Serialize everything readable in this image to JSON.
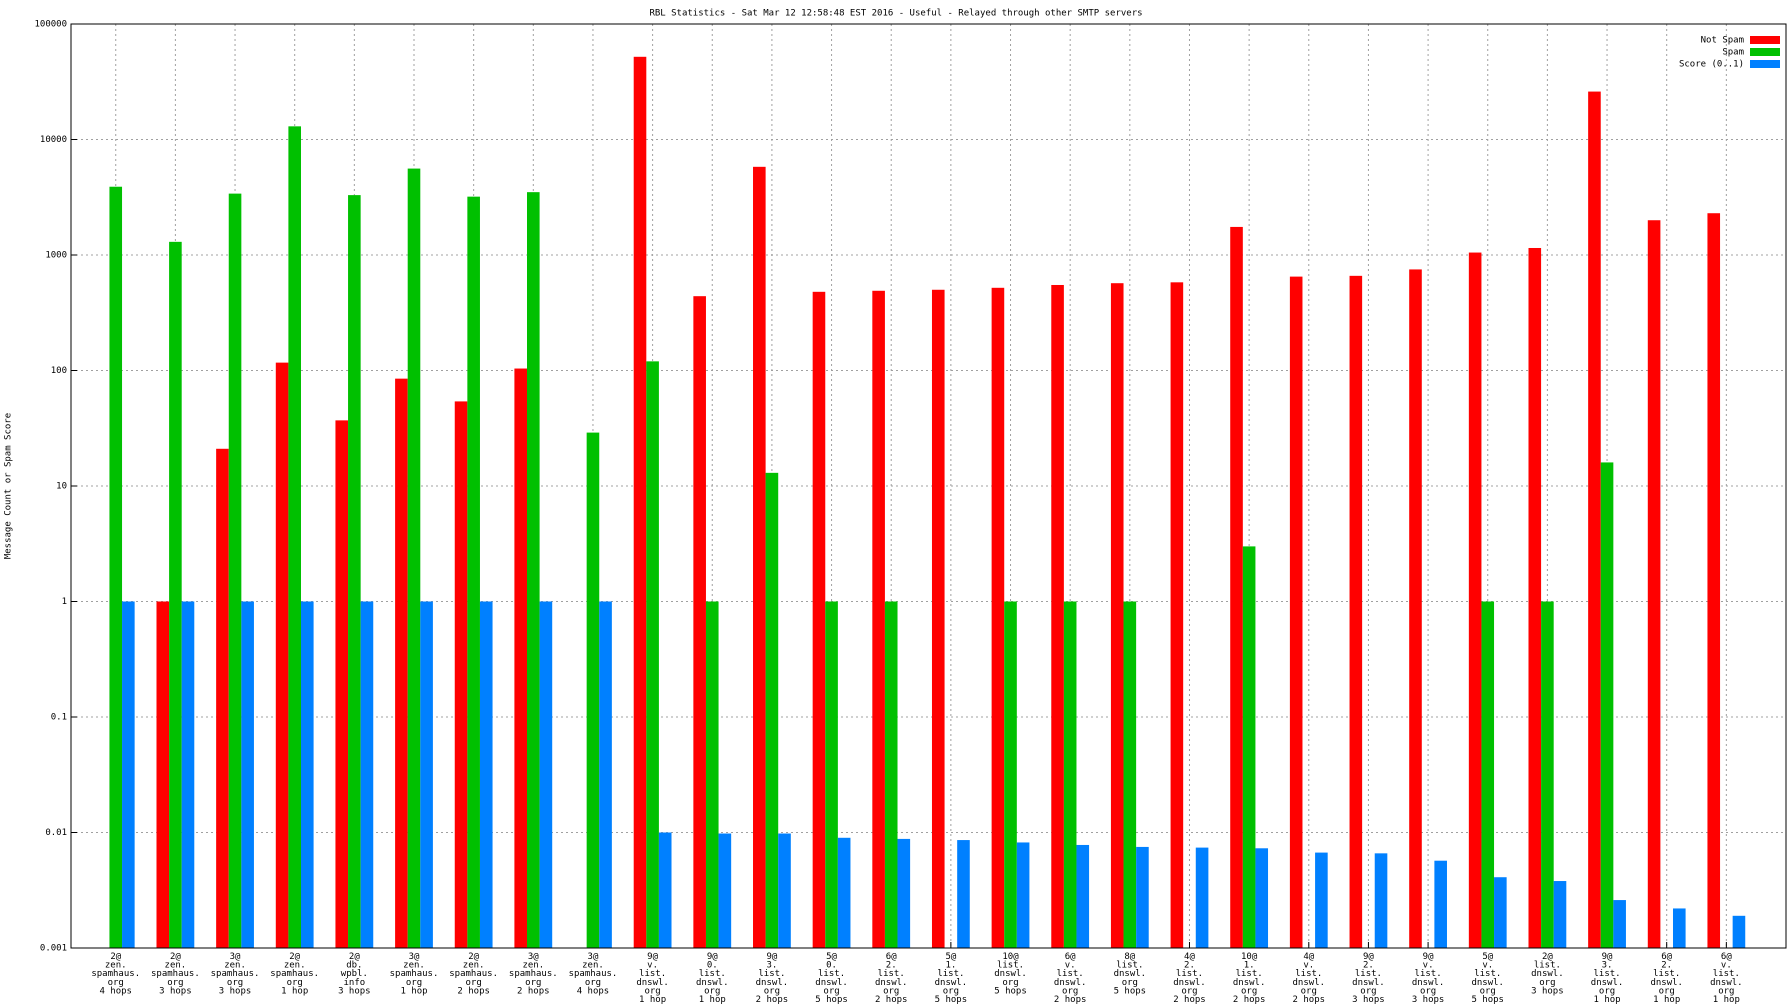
{
  "chart_data": {
    "type": "bar",
    "title": "RBL Statistics - Sat Mar 12 12:58:48 EST 2016 - Useful - Relayed through other SMTP servers",
    "y_label": "Message Count or Spam Score",
    "log_scale": true,
    "grid": true,
    "legend_position": "top-right",
    "categories": [
      [
        "2@",
        "zen.",
        "spamhaus.",
        "org",
        "4 hops"
      ],
      [
        "2@",
        "zen.",
        "spamhaus.",
        "org",
        "3 hops"
      ],
      [
        "3@",
        "zen.",
        "spamhaus.",
        "org",
        "3 hops"
      ],
      [
        "2@",
        "zen.",
        "spamhaus.",
        "org",
        "1 hop"
      ],
      [
        "2@",
        "db.",
        "wpbl.",
        "info",
        "3 hops"
      ],
      [
        "3@",
        "zen.",
        "spamhaus.",
        "org",
        "1 hop"
      ],
      [
        "2@",
        "zen.",
        "spamhaus.",
        "org",
        "2 hops"
      ],
      [
        "3@",
        "zen.",
        "spamhaus.",
        "org",
        "2 hops"
      ],
      [
        "3@",
        "zen.",
        "spamhaus.",
        "org",
        "4 hops"
      ],
      [
        "9@",
        "v.",
        "list.",
        "dnswl.",
        "org",
        "1 hop"
      ],
      [
        "9@",
        "0.",
        "list.",
        "dnswl.",
        "org",
        "1 hop"
      ],
      [
        "9@",
        "3.",
        "list.",
        "dnswl.",
        "org",
        "2 hops"
      ],
      [
        "5@",
        "0.",
        "list.",
        "dnswl.",
        "org",
        "5 hops"
      ],
      [
        "6@",
        "2.",
        "list.",
        "dnswl.",
        "org",
        "2 hops"
      ],
      [
        "5@",
        "1.",
        "list.",
        "dnswl.",
        "org",
        "5 hops"
      ],
      [
        "10@",
        "list.",
        "dnswl.",
        "org",
        "5 hops"
      ],
      [
        "6@",
        "v.",
        "list.",
        "dnswl.",
        "org",
        "2 hops"
      ],
      [
        "8@",
        "list.",
        "dnswl.",
        "org",
        "5 hops"
      ],
      [
        "4@",
        "2.",
        "list.",
        "dnswl.",
        "org",
        "2 hops"
      ],
      [
        "10@",
        "1.",
        "list.",
        "dnswl.",
        "org",
        "2 hops"
      ],
      [
        "4@",
        "v.",
        "list.",
        "dnswl.",
        "org",
        "2 hops"
      ],
      [
        "9@",
        "2.",
        "list.",
        "dnswl.",
        "org",
        "3 hops"
      ],
      [
        "9@",
        "v.",
        "list.",
        "dnswl.",
        "org",
        "3 hops"
      ],
      [
        "5@",
        "v.",
        "list.",
        "dnswl.",
        "org",
        "5 hops"
      ],
      [
        "2@",
        "list.",
        "dnswl.",
        "org",
        "3 hops"
      ],
      [
        "9@",
        "3.",
        "list.",
        "dnswl.",
        "org",
        "1 hop"
      ],
      [
        "6@",
        "2.",
        "list.",
        "dnswl.",
        "org",
        "1 hop"
      ],
      [
        "6@",
        "v.",
        "list.",
        "dnswl.",
        "org",
        "1 hop"
      ]
    ],
    "series": [
      {
        "name": "Not Spam",
        "color": "#ff0000",
        "values": [
          null,
          1,
          21,
          117,
          37,
          85,
          54,
          104,
          null,
          52000,
          440,
          5800,
          480,
          490,
          500,
          520,
          550,
          570,
          580,
          1750,
          650,
          660,
          750,
          1050,
          1150,
          26000,
          2000,
          2300
        ]
      },
      {
        "name": "Spam",
        "color": "#00c000",
        "values": [
          3900,
          1300,
          3400,
          13000,
          3300,
          5600,
          3200,
          3500,
          29,
          120,
          1,
          13,
          1,
          1,
          null,
          1,
          1,
          1,
          null,
          3,
          null,
          null,
          null,
          1,
          1,
          16,
          null,
          null
        ]
      },
      {
        "name": "Score (0..1)",
        "color": "#0080ff",
        "values": [
          1,
          1,
          1,
          1,
          1,
          1,
          1,
          1,
          1,
          0.01,
          0.0098,
          0.0098,
          0.009,
          0.0088,
          0.0086,
          0.0082,
          0.0078,
          0.0075,
          0.0074,
          0.0073,
          0.0067,
          0.0066,
          0.0057,
          0.0041,
          0.0038,
          0.0026,
          0.0022,
          0.0019
        ]
      }
    ],
    "ylim": [
      0.001,
      100000
    ],
    "yticks": [
      0.001,
      0.01,
      0.1,
      1,
      10,
      100,
      1000,
      10000,
      100000
    ]
  }
}
